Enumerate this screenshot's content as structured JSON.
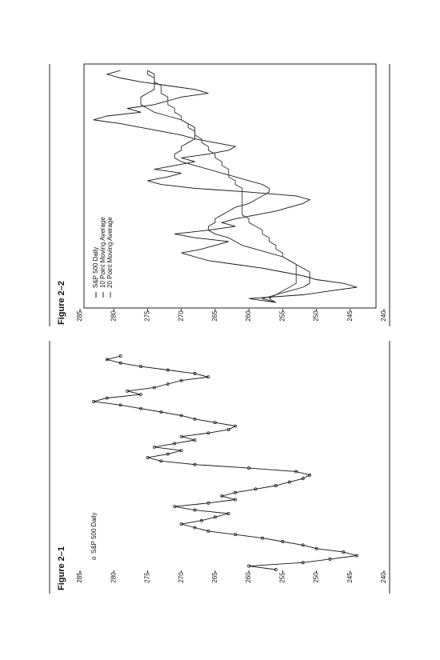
{
  "chart_data": [
    {
      "type": "line",
      "title": "Figure 2–1",
      "markers": true,
      "legend_marker": "o",
      "ylim": [
        240,
        285
      ],
      "yticks": [
        285,
        280,
        275,
        270,
        265,
        260,
        255,
        250,
        245,
        240
      ],
      "series": [
        {
          "name": "S&P 500 Daily",
          "color": "#111111",
          "values": [
            256,
            260,
            252,
            248,
            244,
            246,
            250,
            252,
            255,
            258,
            262,
            266,
            268,
            270,
            267,
            265,
            263,
            268,
            271,
            266,
            262,
            264,
            262,
            259,
            256,
            254,
            252,
            251,
            253,
            260,
            268,
            273,
            275,
            272,
            270,
            274,
            271,
            268,
            270,
            266,
            263,
            262,
            265,
            268,
            270,
            273,
            276,
            279,
            283,
            281,
            276,
            278,
            274,
            272,
            270,
            266,
            268,
            272,
            276,
            279,
            281,
            279
          ]
        }
      ]
    },
    {
      "type": "line",
      "title": "Figure 2–2",
      "markers": false,
      "frame": true,
      "ylim": [
        240,
        285
      ],
      "yticks": [
        285,
        280,
        275,
        270,
        265,
        260,
        255,
        250,
        245,
        240
      ],
      "series": [
        {
          "name": "S&P 500 Daily",
          "color": "#111111",
          "values": [
            256,
            260,
            252,
            248,
            244,
            246,
            250,
            252,
            255,
            258,
            262,
            266,
            268,
            270,
            267,
            265,
            263,
            268,
            271,
            266,
            262,
            264,
            262,
            259,
            256,
            254,
            252,
            251,
            253,
            260,
            268,
            273,
            275,
            272,
            270,
            274,
            271,
            268,
            270,
            266,
            263,
            262,
            265,
            268,
            270,
            273,
            276,
            279,
            283,
            281,
            276,
            278,
            274,
            272,
            270,
            266,
            268,
            272,
            276,
            279,
            281,
            279
          ]
        },
        {
          "name": "10 Point Moving Average",
          "color": "#222222",
          "values": [
            256,
            258,
            256,
            254,
            252,
            251,
            251,
            251,
            251,
            252,
            253,
            254,
            255,
            257,
            259,
            261,
            262,
            263,
            265,
            266,
            266,
            265,
            265,
            264,
            263,
            262,
            260,
            259,
            258,
            257,
            257,
            258,
            260,
            262,
            264,
            266,
            268,
            270,
            271,
            271,
            270,
            270,
            269,
            268,
            268,
            268,
            268,
            269,
            270,
            272,
            274,
            275,
            276,
            276,
            276,
            275,
            274,
            274,
            274,
            274,
            274,
            275
          ]
        },
        {
          "name": "20 Point Moving Average",
          "color": "#333333",
          "values": [
            256,
            257,
            256,
            255,
            254,
            253,
            253,
            253,
            253,
            253,
            253,
            254,
            255,
            255,
            256,
            256,
            257,
            257,
            258,
            258,
            259,
            260,
            260,
            261,
            261,
            261,
            261,
            261,
            261,
            261,
            261,
            262,
            262,
            263,
            263,
            263,
            264,
            264,
            265,
            265,
            266,
            266,
            267,
            267,
            268,
            268,
            269,
            269,
            270,
            270,
            271,
            271,
            272,
            272,
            272,
            273,
            273,
            273,
            274,
            274,
            275,
            275
          ]
        }
      ]
    }
  ]
}
